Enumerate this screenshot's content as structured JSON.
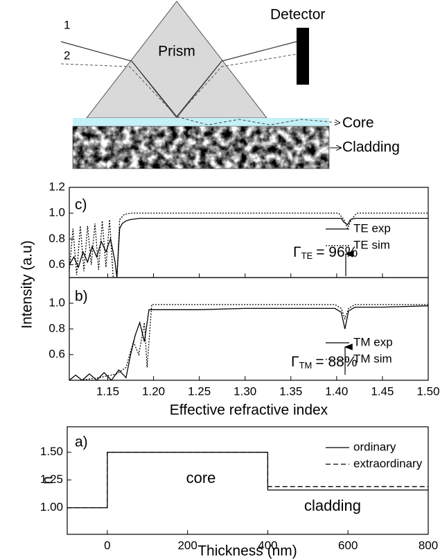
{
  "diagram": {
    "labels": {
      "detector": "Detector",
      "beam1": "1",
      "beam2": "2",
      "prism": "Prism",
      "core": "Core",
      "cladding": "Cladding"
    }
  },
  "chart_data": [
    {
      "type": "line",
      "panel_label": "c)",
      "ylabel": "Intensity (a.u)",
      "xlim": [
        1.108,
        1.5
      ],
      "ylim": [
        0.5,
        1.2
      ],
      "yticks": [
        0.6,
        0.8,
        {
          "value": 1,
          "label": "1.0"
        },
        1.2
      ],
      "series": [
        {
          "name": "TE exp",
          "color": "#000000",
          "dash": "solid",
          "x": [
            1.108,
            1.113,
            1.118,
            1.123,
            1.128,
            1.133,
            1.138,
            1.143,
            1.148,
            1.153,
            1.158,
            1.16,
            1.163,
            1.166,
            1.17,
            1.175,
            1.185,
            1.2,
            1.25,
            1.3,
            1.35,
            1.39,
            1.405,
            1.408,
            1.412,
            1.415,
            1.42,
            1.45,
            1.5
          ],
          "values": [
            0.6,
            0.66,
            0.58,
            0.7,
            0.62,
            0.74,
            0.66,
            0.78,
            0.7,
            0.8,
            0.62,
            0.5,
            0.88,
            0.92,
            0.94,
            0.95,
            0.96,
            0.96,
            0.96,
            0.96,
            0.96,
            0.96,
            0.96,
            0.93,
            0.91,
            0.95,
            0.96,
            0.96,
            0.96
          ]
        },
        {
          "name": "TE sim",
          "color": "#000000",
          "dash": "dotted",
          "x": [
            1.108,
            1.112,
            1.116,
            1.12,
            1.124,
            1.128,
            1.132,
            1.136,
            1.14,
            1.144,
            1.148,
            1.152,
            1.156,
            1.16,
            1.163,
            1.168,
            1.175,
            1.2,
            1.3,
            1.402,
            1.408,
            1.412,
            1.416,
            1.422,
            1.5
          ],
          "values": [
            0.55,
            0.88,
            0.52,
            0.9,
            0.55,
            0.9,
            0.6,
            0.92,
            0.56,
            0.94,
            0.58,
            0.95,
            0.5,
            0.5,
            0.95,
            0.99,
            1.0,
            1.0,
            1.0,
            1.0,
            0.95,
            0.88,
            0.95,
            1.0,
            1.0
          ]
        }
      ],
      "annotation": {
        "symbol": "Γ",
        "subscript": "TE",
        "text": "= 96%"
      }
    },
    {
      "type": "line",
      "panel_label": "b)",
      "xlabel": "Effective refractive index",
      "xlim": [
        1.108,
        1.5
      ],
      "ylim": [
        0.4,
        1.2
      ],
      "xticks": [
        1.15,
        {
          "value": 1.2,
          "label": "1.20"
        },
        1.25,
        {
          "value": 1.3,
          "label": "1.30"
        },
        1.35,
        {
          "value": 1.4,
          "label": "1.40"
        },
        1.45,
        {
          "value": 1.5,
          "label": "1.50"
        }
      ],
      "yticks": [
        0.6,
        0.8,
        {
          "value": 1,
          "label": "1.0"
        }
      ],
      "series": [
        {
          "name": "TM exp",
          "color": "#000000",
          "dash": "solid",
          "x": [
            1.108,
            1.115,
            1.122,
            1.13,
            1.138,
            1.146,
            1.154,
            1.162,
            1.17,
            1.175,
            1.18,
            1.185,
            1.19,
            1.195,
            1.2,
            1.25,
            1.3,
            1.398,
            1.405,
            1.409,
            1.413,
            1.42,
            1.45,
            1.5
          ],
          "values": [
            0.4,
            0.44,
            0.4,
            0.45,
            0.4,
            0.46,
            0.4,
            0.48,
            0.42,
            0.6,
            0.75,
            0.85,
            0.7,
            0.95,
            0.95,
            0.95,
            0.96,
            0.96,
            0.93,
            0.8,
            0.94,
            0.97,
            0.97,
            0.98
          ]
        },
        {
          "name": "TM sim",
          "color": "#000000",
          "dash": "dotted",
          "x": [
            1.108,
            1.12,
            1.14,
            1.16,
            1.17,
            1.178,
            1.184,
            1.19,
            1.193,
            1.198,
            1.25,
            1.398,
            1.405,
            1.409,
            1.413,
            1.42,
            1.5
          ],
          "values": [
            0.4,
            0.4,
            0.42,
            0.45,
            0.5,
            0.7,
            0.6,
            0.85,
            0.5,
            0.99,
            0.99,
            0.99,
            0.96,
            0.88,
            0.96,
            0.99,
            0.99
          ]
        }
      ],
      "annotation": {
        "symbol": "Γ",
        "subscript": "TM",
        "text": "= 88%"
      }
    },
    {
      "type": "line",
      "panel_label": "a)",
      "xlabel": "Thickness (nm)",
      "ylabel": "n",
      "xlim": [
        -100,
        800
      ],
      "ylim": [
        0.76,
        1.73
      ],
      "xticks": [
        0,
        200,
        400,
        600,
        800
      ],
      "yticks": [
        {
          "value": 1,
          "label": "1.00"
        },
        1.25,
        {
          "value": 1.5,
          "label": "1.50"
        }
      ],
      "series": [
        {
          "name": "ordinary",
          "color": "#000000",
          "dash": "solid",
          "x": [
            -100,
            0,
            0,
            400,
            400,
            800
          ],
          "values": [
            1,
            1,
            1.5,
            1.5,
            1.16,
            1.16
          ]
        },
        {
          "name": "extraordinary",
          "color": "#000000",
          "dash": "dashed",
          "x": [
            -100,
            0,
            0,
            400,
            400,
            800
          ],
          "values": [
            1,
            1,
            1.5,
            1.5,
            1.19,
            1.19
          ]
        }
      ],
      "annotations": [
        "core",
        "cladding"
      ]
    }
  ]
}
